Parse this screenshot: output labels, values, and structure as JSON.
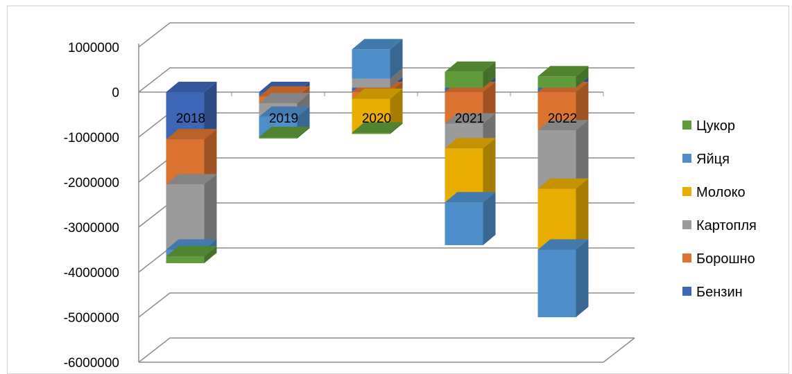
{
  "chart_data": {
    "type": "bar",
    "stacked": true,
    "three_d": true,
    "categories": [
      "2018",
      "2019",
      "2020",
      "2021",
      "2022"
    ],
    "series": [
      {
        "name": "Бензин",
        "color": "#3d67b6",
        "values": [
          -1050000,
          -100000,
          100000,
          100000,
          100000
        ]
      },
      {
        "name": "Борошно",
        "color": "#dd7330",
        "values": [
          -1000000,
          -150000,
          -150000,
          -700000,
          -850000
        ]
      },
      {
        "name": "Картопля",
        "color": "#9b9b9b",
        "values": [
          -1450000,
          -300000,
          200000,
          -550000,
          -1300000
        ]
      },
      {
        "name": "Молоко",
        "color": "#e8ad00",
        "values": [
          0,
          0,
          -750000,
          -1200000,
          -1350000
        ]
      },
      {
        "name": "Яйця",
        "color": "#4e8fcb",
        "values": [
          -150000,
          -450000,
          650000,
          -950000,
          -1500000
        ]
      },
      {
        "name": "Цукор",
        "color": "#5f9b3a",
        "values": [
          -150000,
          -30000,
          -30000,
          350000,
          250000
        ]
      }
    ],
    "yticks": [
      "1000000",
      "0",
      "-1000000",
      "-2000000",
      "-3000000",
      "-4000000",
      "-5000000",
      "-6000000"
    ],
    "ylim": [
      -6000000,
      1000000
    ],
    "legend_position": "right",
    "grid": true
  }
}
